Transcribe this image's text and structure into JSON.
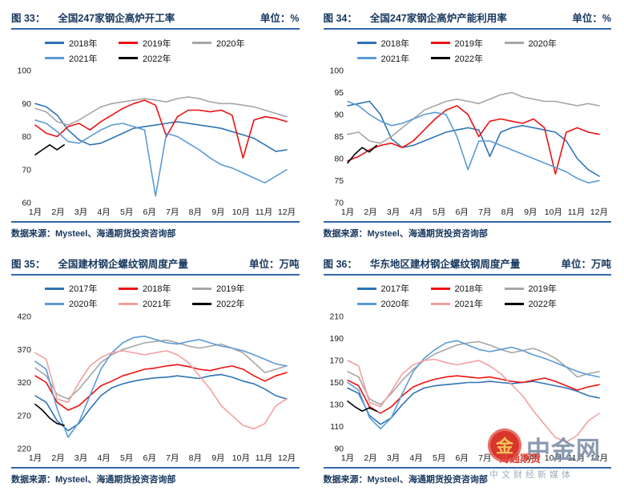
{
  "watermark": {
    "brand": "中金网",
    "overlay": "海通期货",
    "subtitle": "中文财经新媒体",
    "logo_glyph": "金",
    "colors": {
      "logo_bg": "#D8261C",
      "brand": "#8193AB",
      "overlay": "#E03A2F"
    }
  },
  "charts": [
    {
      "fig_label": "图 33：",
      "title": "全国247家钢企高炉开工率",
      "unit_label": "单位：%",
      "source": "数据来源：Mysteel、海通期货投资咨询部",
      "chart_data": {
        "type": "line",
        "title": "全国247家钢企高炉开工率",
        "xlabel": "",
        "ylabel": "%",
        "grid": false,
        "legend_position": "top-left-inside",
        "ylim": [
          60,
          100
        ],
        "yticks": [
          100,
          90,
          80,
          70,
          60
        ],
        "x_axis": {
          "labels": [
            "1月",
            "2月",
            "3月",
            "4月",
            "5月",
            "6月",
            "7月",
            "8月",
            "9月",
            "10月",
            "11月",
            "12月"
          ]
        },
        "series": [
          {
            "name": "2018年",
            "color": "#2E74B5",
            "span": [
              0,
              1
            ],
            "values": [
              90,
              89,
              86.5,
              82,
              79,
              77.5,
              78,
              79.5,
              81,
              82.5,
              83,
              83.5,
              84,
              84.5,
              84,
              83.5,
              83,
              82.5,
              81.5,
              80.5,
              79.5,
              77.5,
              75.5,
              76
            ]
          },
          {
            "name": "2019年",
            "color": "#EE1111",
            "span": [
              0,
              1
            ],
            "values": [
              83.5,
              81,
              80,
              83,
              84,
              82,
              84.5,
              86.5,
              88.5,
              90,
              91,
              89.5,
              80,
              86,
              88,
              88,
              87.5,
              88,
              86.5,
              73.5,
              85,
              86,
              85.5,
              84.5
            ]
          },
          {
            "name": "2020年",
            "color": "#A6A6A6",
            "span": [
              0,
              1
            ],
            "values": [
              88.5,
              87.5,
              84.5,
              83.5,
              85,
              87,
              89,
              90,
              90.5,
              91,
              91.5,
              91,
              90.5,
              91.5,
              92,
              91.5,
              90.5,
              90,
              90,
              89.5,
              89,
              88,
              87,
              86
            ]
          },
          {
            "name": "2021年",
            "color": "#5B9BD5",
            "span": [
              0,
              1
            ],
            "values": [
              85,
              84,
              81.5,
              78.5,
              78,
              80,
              82,
              83.5,
              84,
              83,
              82,
              62,
              81,
              80,
              78,
              76,
              73.5,
              71.5,
              70.5,
              69,
              67.5,
              66,
              68,
              70
            ]
          },
          {
            "name": "2022年",
            "color": "#000000",
            "span": [
              0,
              0.115
            ],
            "values": [
              74.5,
              76,
              77.5,
              76,
              77.5
            ]
          }
        ]
      }
    },
    {
      "fig_label": "图 34：",
      "title": "全国247家钢企高炉产能利用率",
      "unit_label": "单位：%",
      "source": "数据来源：Mysteel、海通期货投资咨询部",
      "chart_data": {
        "type": "line",
        "title": "全国247家钢企高炉产能利用率",
        "xlabel": "",
        "ylabel": "%",
        "grid": false,
        "legend_position": "top-left-inside",
        "ylim": [
          70,
          100
        ],
        "yticks": [
          100,
          95,
          90,
          85,
          80,
          75,
          70
        ],
        "x_axis": {
          "labels": [
            "1月",
            "2月",
            "3月",
            "4月",
            "5月",
            "6月",
            "7月",
            "8月",
            "9月",
            "10月",
            "11月",
            "12月"
          ]
        },
        "series": [
          {
            "name": "2018年",
            "color": "#2E74B5",
            "span": [
              0,
              1
            ],
            "values": [
              92,
              92.5,
              93,
              90,
              84.5,
              82.5,
              83,
              84,
              85,
              86,
              86.5,
              87,
              86.5,
              80.5,
              86,
              87,
              87.5,
              87,
              86.5,
              86,
              84,
              80,
              77.5,
              76
            ]
          },
          {
            "name": "2019年",
            "color": "#EE1111",
            "span": [
              0,
              1
            ],
            "values": [
              79.5,
              80.5,
              82,
              83,
              83.5,
              82.5,
              84,
              86.5,
              89,
              91,
              92,
              90,
              85,
              88.5,
              89,
              88.5,
              88,
              89,
              87,
              76.5,
              86,
              87,
              86,
              85.5
            ]
          },
          {
            "name": "2020年",
            "color": "#A6A6A6",
            "span": [
              0,
              1
            ],
            "values": [
              85.5,
              86,
              84,
              83.5,
              85,
              87,
              89,
              91,
              92,
              93,
              93.5,
              93,
              92.5,
              93.5,
              94.5,
              95,
              94,
              93.5,
              93,
              93,
              92.5,
              92,
              92.5,
              92
            ]
          },
          {
            "name": "2021年",
            "color": "#5B9BD5",
            "span": [
              0,
              1
            ],
            "values": [
              93,
              92,
              90,
              88.5,
              87.5,
              88,
              89,
              90,
              90.5,
              90,
              85,
              77.5,
              84,
              84,
              83,
              82,
              81,
              80,
              79,
              78,
              77,
              75.5,
              74.5,
              75
            ]
          },
          {
            "name": "2022年",
            "color": "#000000",
            "span": [
              0,
              0.115
            ],
            "values": [
              79,
              81,
              82.5,
              81.5,
              83
            ]
          }
        ]
      }
    },
    {
      "fig_label": "图 35：",
      "title": "全国建材钢企螺纹钢周度产量",
      "unit_label": "单位：万吨",
      "source": "数据来源：Mysteel、海通期货投资咨询部",
      "chart_data": {
        "type": "line",
        "title": "全国建材钢企螺纹钢周度产量",
        "xlabel": "",
        "ylabel": "万吨",
        "grid": false,
        "legend_position": "top-left-inside",
        "ylim": [
          220,
          420
        ],
        "yticks": [
          420,
          370,
          320,
          270,
          220
        ],
        "x_axis": {
          "labels": [
            "1月",
            "2月",
            "3月",
            "4月",
            "5月",
            "6月",
            "7月",
            "8月",
            "9月",
            "10月",
            "11月",
            "12月"
          ]
        },
        "series": [
          {
            "name": "2017年",
            "color": "#2E74B5",
            "span": [
              0,
              1
            ],
            "values": [
              300,
              290,
              262,
              247,
              258,
              280,
              300,
              312,
              318,
              322,
              325,
              327,
              328,
              330,
              328,
              326,
              330,
              332,
              328,
              322,
              318,
              310,
              300,
              295
            ]
          },
          {
            "name": "2018年",
            "color": "#EE1111",
            "span": [
              0,
              1
            ],
            "values": [
              330,
              320,
              290,
              278,
              285,
              300,
              315,
              322,
              330,
              335,
              340,
              342,
              345,
              347,
              344,
              340,
              338,
              342,
              345,
              340,
              330,
              322,
              330,
              335
            ]
          },
          {
            "name": "2019年",
            "color": "#A6A6A6",
            "span": [
              0,
              1
            ],
            "values": [
              342,
              330,
              302,
              295,
              310,
              330,
              350,
              362,
              370,
              375,
              380,
              382,
              384,
              380,
              375,
              372,
              375,
              378,
              372,
              365,
              350,
              335,
              340,
              345
            ]
          },
          {
            "name": "2020年",
            "color": "#5B9BD5",
            "span": [
              0,
              1
            ],
            "values": [
              352,
              340,
              280,
              237,
              260,
              300,
              340,
              365,
              380,
              388,
              390,
              385,
              380,
              378,
              382,
              385,
              380,
              375,
              372,
              368,
              362,
              355,
              348,
              345
            ]
          },
          {
            "name": "2021年",
            "color": "#F2A0A0",
            "span": [
              0,
              1
            ],
            "values": [
              365,
              355,
              295,
              290,
              320,
              345,
              358,
              365,
              368,
              365,
              362,
              365,
              368,
              362,
              350,
              330,
              310,
              285,
              270,
              255,
              250,
              258,
              285,
              295
            ]
          },
          {
            "name": "2022年",
            "color": "#000000",
            "span": [
              0,
              0.115
            ],
            "values": [
              287,
              278,
              266,
              258,
              255
            ]
          }
        ]
      }
    },
    {
      "fig_label": "图 36：",
      "title": "华东地区建材钢企螺纹钢周度产量",
      "unit_label": "单位：万吨",
      "source": "数据来源：Mysteel、海通期货投资咨询部",
      "chart_data": {
        "type": "line",
        "title": "华东地区建材钢企螺纹钢周度产量",
        "xlabel": "",
        "ylabel": "万吨",
        "grid": false,
        "legend_position": "top-left-inside",
        "ylim": [
          90,
          210
        ],
        "yticks": [
          210,
          190,
          170,
          150,
          130,
          110,
          90
        ],
        "x_axis": {
          "labels": [
            "1月",
            "2月",
            "3月",
            "4月",
            "5月",
            "6月",
            "7月",
            "8月",
            "9月",
            "10月",
            "11月",
            "12月"
          ]
        },
        "series": [
          {
            "name": "2017年",
            "color": "#2E74B5",
            "span": [
              0,
              1
            ],
            "values": [
              145,
              140,
              120,
              112,
              118,
              130,
              140,
              145,
              147,
              148,
              149,
              150,
              150,
              151,
              150,
              149,
              150,
              151,
              149,
              147,
              145,
              142,
              138,
              136
            ]
          },
          {
            "name": "2018年",
            "color": "#EE1111",
            "span": [
              0,
              1
            ],
            "values": [
              152,
              147,
              128,
              122,
              128,
              138,
              146,
              150,
              153,
              155,
              156,
              155,
              154,
              155,
              153,
              151,
              150,
              152,
              154,
              151,
              147,
              143,
              146,
              148
            ]
          },
          {
            "name": "2019年",
            "color": "#A6A6A6",
            "span": [
              0,
              1
            ],
            "values": [
              160,
              155,
              135,
              130,
              140,
              152,
              162,
              170,
              176,
              180,
              184,
              186,
              187,
              184,
              180,
              177,
              179,
              181,
              177,
              172,
              164,
              155,
              158,
              160
            ]
          },
          {
            "name": "2020年",
            "color": "#5B9BD5",
            "span": [
              0,
              1
            ],
            "values": [
              150,
              143,
              118,
              108,
              118,
              140,
              160,
              172,
              180,
              186,
              188,
              184,
              180,
              178,
              180,
              182,
              179,
              175,
              172,
              168,
              164,
              160,
              157,
              155
            ]
          },
          {
            "name": "2021年",
            "color": "#F2A0A0",
            "span": [
              0,
              1
            ],
            "values": [
              170,
              165,
              132,
              128,
              142,
              158,
              166,
              170,
              171,
              168,
              166,
              168,
              170,
              165,
              158,
              148,
              138,
              124,
              112,
              100,
              96,
              102,
              115,
              122
            ]
          },
          {
            "name": "2022年",
            "color": "#000000",
            "span": [
              0,
              0.115
            ],
            "values": [
              133,
              128,
              124,
              127,
              124
            ]
          }
        ]
      }
    }
  ]
}
